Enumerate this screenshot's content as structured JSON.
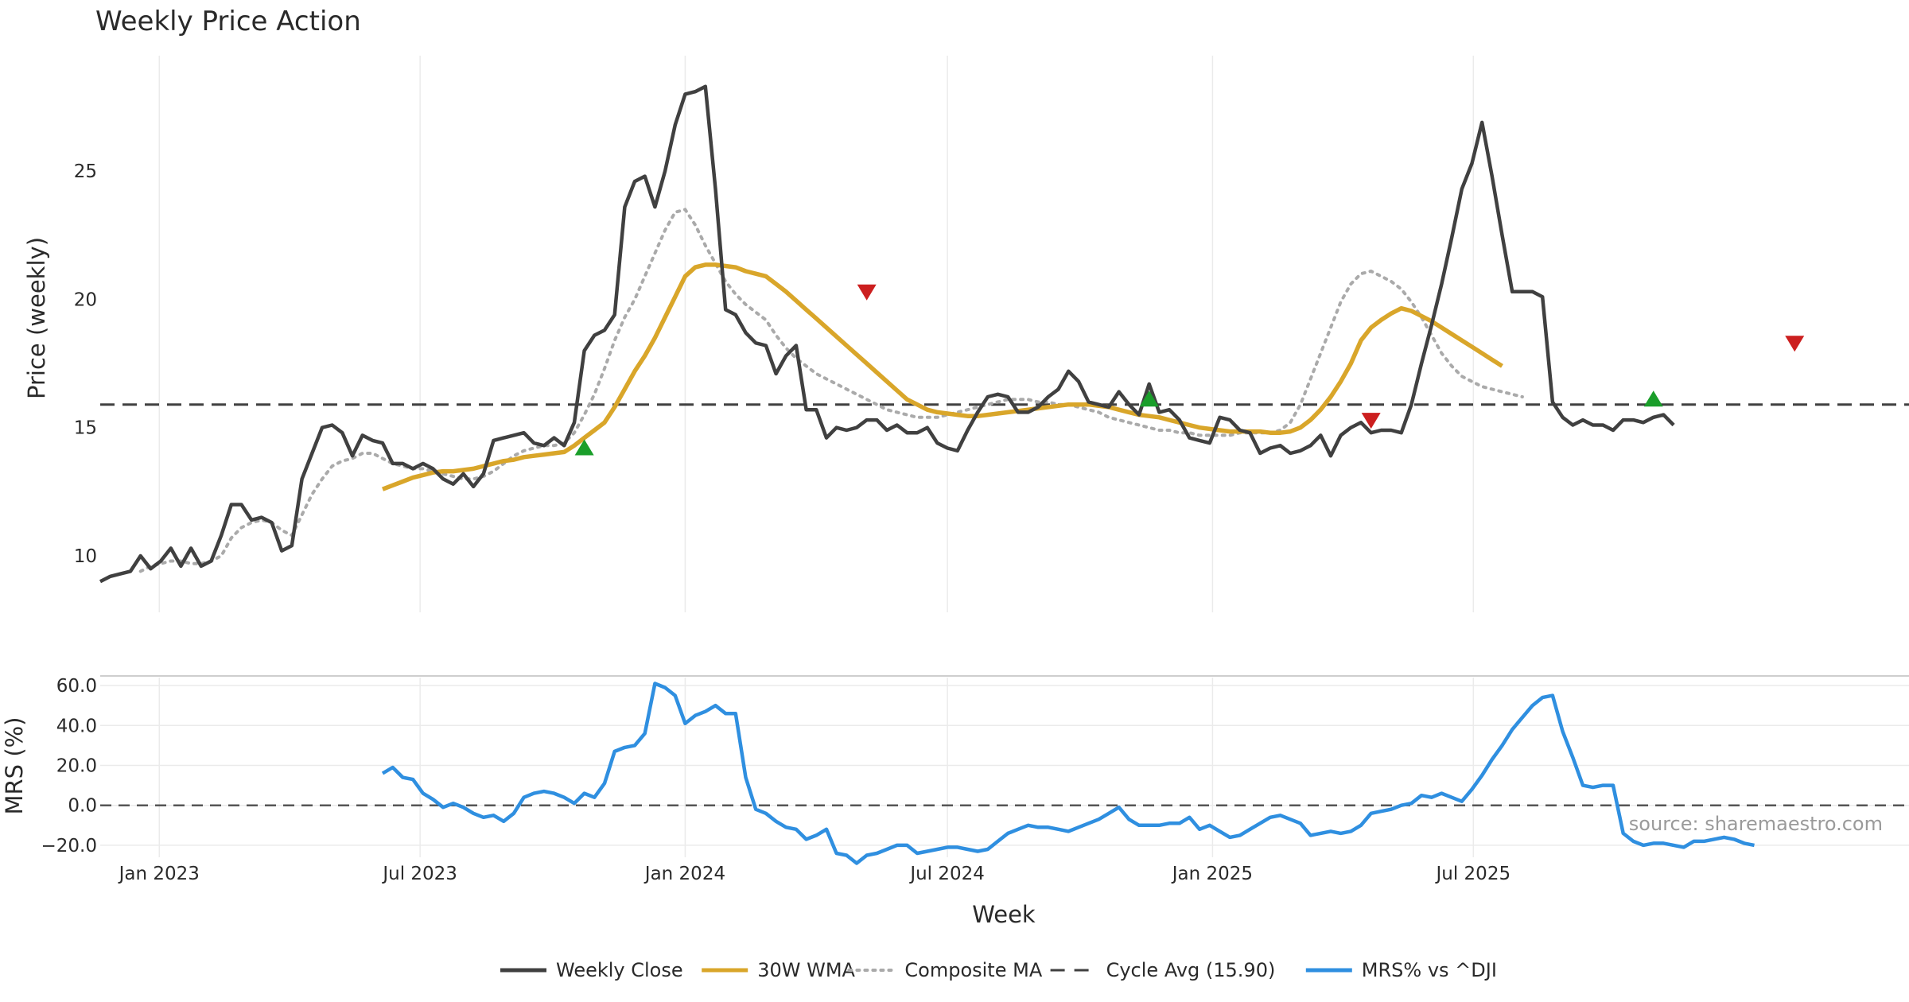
{
  "chart_data": [
    {
      "type": "line",
      "title": "Weekly Price Action",
      "xlabel": "Week",
      "ylabel": "Price (weekly)",
      "x_start": "2022-11-21",
      "x_step_weeks": 1,
      "x_ticks": [
        "Jan 2023",
        "Jul 2023",
        "Jan 2024",
        "Jul 2024",
        "Jan 2025",
        "Jul 2025"
      ],
      "y_ticks": [
        "10",
        "15",
        "20",
        "25"
      ],
      "ylim": [
        7.8,
        29.5
      ],
      "grid": "vertical",
      "series": [
        {
          "name": "Weekly Close",
          "color": "#404040",
          "values": [
            9.0,
            9.2,
            9.3,
            9.4,
            10.0,
            9.5,
            9.8,
            10.3,
            9.6,
            10.3,
            9.6,
            9.8,
            10.8,
            12.0,
            12.0,
            11.4,
            11.5,
            11.3,
            10.2,
            10.4,
            13.0,
            14.0,
            15.0,
            15.1,
            14.8,
            13.9,
            14.7,
            14.5,
            14.4,
            13.6,
            13.6,
            13.4,
            13.6,
            13.4,
            13.0,
            12.8,
            13.2,
            12.7,
            13.2,
            14.5,
            14.6,
            14.7,
            14.8,
            14.4,
            14.3,
            14.6,
            14.3,
            15.2,
            18.0,
            18.6,
            18.8,
            19.4,
            23.6,
            24.6,
            24.8,
            23.6,
            25.0,
            26.8,
            28.0,
            28.1,
            28.3,
            24.3,
            19.6,
            19.4,
            18.7,
            18.3,
            18.2,
            17.1,
            17.8,
            18.2,
            15.7,
            15.7,
            14.6,
            15.0,
            14.9,
            15.0,
            15.3,
            15.3,
            14.9,
            15.1,
            14.8,
            14.8,
            15.0,
            14.4,
            14.2,
            14.1,
            14.9,
            15.6,
            16.2,
            16.3,
            16.2,
            15.6,
            15.6,
            15.8,
            16.2,
            16.5,
            17.2,
            16.8,
            16.0,
            15.9,
            15.8,
            16.4,
            15.9,
            15.5,
            16.7,
            15.6,
            15.7,
            15.3,
            14.6,
            14.5,
            14.4,
            15.4,
            15.3,
            14.9,
            14.8,
            14.0,
            14.2,
            14.3,
            14.0,
            14.1,
            14.3,
            14.7,
            13.9,
            14.7,
            15.0,
            15.2,
            14.8,
            14.9,
            14.9,
            14.8,
            15.9,
            17.5,
            19.0,
            20.6,
            22.4,
            24.3,
            25.3,
            26.9,
            24.8,
            22.5,
            20.3,
            20.3,
            20.3,
            20.1,
            16.0,
            15.4,
            15.1,
            15.3,
            15.1,
            15.1,
            14.9,
            15.3,
            15.3,
            15.2,
            15.4,
            15.5,
            15.1
          ]
        },
        {
          "name": "30W WMA",
          "color": "#d9a62a",
          "values": [
            null,
            null,
            null,
            null,
            null,
            null,
            null,
            null,
            null,
            null,
            null,
            null,
            null,
            null,
            null,
            null,
            null,
            null,
            null,
            null,
            null,
            null,
            null,
            null,
            null,
            null,
            null,
            null,
            12.6,
            12.75,
            12.9,
            13.05,
            13.15,
            13.25,
            13.3,
            13.3,
            13.35,
            13.4,
            13.5,
            13.6,
            13.7,
            13.75,
            13.85,
            13.9,
            13.95,
            14.0,
            14.05,
            14.3,
            14.6,
            14.9,
            15.2,
            15.8,
            16.5,
            17.2,
            17.8,
            18.5,
            19.3,
            20.1,
            20.9,
            21.25,
            21.35,
            21.35,
            21.3,
            21.25,
            21.1,
            21.0,
            20.9,
            20.6,
            20.3,
            19.95,
            19.6,
            19.25,
            18.9,
            18.55,
            18.2,
            17.85,
            17.5,
            17.15,
            16.8,
            16.45,
            16.1,
            15.9,
            15.7,
            15.6,
            15.55,
            15.5,
            15.45,
            15.45,
            15.5,
            15.55,
            15.6,
            15.65,
            15.7,
            15.75,
            15.8,
            15.85,
            15.9,
            15.9,
            15.9,
            15.85,
            15.8,
            15.7,
            15.6,
            15.5,
            15.45,
            15.4,
            15.3,
            15.2,
            15.1,
            15.0,
            14.95,
            14.9,
            14.85,
            14.85,
            14.85,
            14.85,
            14.8,
            14.8,
            14.85,
            15.0,
            15.3,
            15.7,
            16.2,
            16.8,
            17.5,
            18.4,
            18.9,
            19.2,
            19.45,
            19.65,
            19.55,
            19.35,
            19.15,
            18.9,
            18.65,
            18.4,
            18.15,
            17.9,
            17.65,
            17.4
          ]
        },
        {
          "name": "Composite MA",
          "color": "#aaaaaa",
          "values": [
            null,
            null,
            null,
            null,
            9.4,
            9.6,
            9.7,
            9.8,
            9.8,
            9.7,
            9.7,
            9.8,
            10.0,
            10.7,
            11.1,
            11.3,
            11.4,
            11.3,
            11.0,
            10.8,
            11.6,
            12.4,
            13.0,
            13.5,
            13.7,
            13.8,
            14.0,
            14.0,
            13.8,
            13.6,
            13.5,
            13.4,
            13.4,
            13.3,
            13.2,
            13.1,
            13.0,
            13.0,
            13.1,
            13.3,
            13.6,
            13.9,
            14.1,
            14.2,
            14.3,
            14.3,
            14.4,
            14.8,
            15.5,
            16.3,
            17.3,
            18.4,
            19.3,
            20.0,
            20.9,
            21.8,
            22.7,
            23.4,
            23.5,
            22.9,
            22.1,
            21.4,
            20.7,
            20.2,
            19.8,
            19.5,
            19.2,
            18.6,
            18.1,
            17.7,
            17.4,
            17.1,
            16.9,
            16.7,
            16.5,
            16.3,
            16.1,
            15.9,
            15.7,
            15.6,
            15.5,
            15.4,
            15.4,
            15.4,
            15.5,
            15.6,
            15.7,
            15.8,
            15.9,
            16.0,
            16.1,
            16.1,
            16.1,
            16.0,
            16.0,
            15.9,
            15.9,
            15.8,
            15.7,
            15.6,
            15.4,
            15.3,
            15.2,
            15.1,
            15.0,
            14.9,
            14.9,
            14.8,
            14.8,
            14.7,
            14.7,
            14.7,
            14.7,
            14.8,
            14.8,
            14.8,
            14.8,
            14.9,
            15.2,
            15.9,
            16.9,
            17.9,
            18.9,
            19.9,
            20.6,
            21.0,
            21.1,
            20.9,
            20.7,
            20.4,
            19.9,
            19.3,
            18.6,
            17.9,
            17.4,
            17.0,
            16.8,
            16.6,
            16.5,
            16.4,
            16.3,
            16.2
          ]
        },
        {
          "name": "Cycle Avg (15.90)",
          "value": 15.9,
          "color": "#404040",
          "style": "dashed"
        }
      ],
      "signals": {
        "buy": [
          {
            "week": 48,
            "value": 14.2
          },
          {
            "week": 104,
            "value": 16.1
          },
          {
            "week": 154,
            "value": 16.1
          }
        ],
        "sell": [
          {
            "week": 76,
            "value": 20.3
          },
          {
            "week": 126,
            "value": 15.3
          },
          {
            "week": 168,
            "value": 18.3
          }
        ]
      }
    },
    {
      "type": "line",
      "xlabel": "Week",
      "ylabel": "MRS (%)",
      "y_ticks": [
        "60.0",
        "40.0",
        "20.0",
        "0.0",
        "−20.0"
      ],
      "ylim": [
        -26,
        64
      ],
      "zero_line": "dashed",
      "series": [
        {
          "name": "MRS% vs ^DJI",
          "color": "#2f8fe0",
          "values": [
            null,
            null,
            null,
            null,
            null,
            null,
            null,
            null,
            null,
            null,
            null,
            null,
            null,
            null,
            null,
            null,
            null,
            null,
            null,
            null,
            null,
            null,
            null,
            null,
            null,
            null,
            null,
            null,
            16,
            19,
            14,
            13,
            6,
            3,
            -1,
            1,
            -1,
            -4,
            -6,
            -5,
            -8,
            -4,
            4,
            6,
            7,
            6,
            4,
            1,
            6,
            4,
            11,
            27,
            29,
            30,
            36,
            61,
            59,
            55,
            41,
            45,
            47,
            50,
            46,
            46,
            14,
            -2,
            -4,
            -8,
            -11,
            -12,
            -17,
            -15,
            -12,
            -24,
            -25,
            -29,
            -25,
            -24,
            -22,
            -20,
            -20,
            -24,
            -23,
            -22,
            -21,
            -21,
            -22,
            -23,
            -22,
            -18,
            -14,
            -12,
            -10,
            -11,
            -11,
            -12,
            -13,
            -11,
            -9,
            -7,
            -4,
            -1,
            -7,
            -10,
            -10,
            -10,
            -9,
            -9,
            -6,
            -12,
            -10,
            -13,
            -16,
            -15,
            -12,
            -9,
            -6,
            -5,
            -7,
            -9,
            -15,
            -14,
            -13,
            -14,
            -13,
            -10,
            -4,
            -3,
            -2,
            0,
            1,
            5,
            4,
            6,
            4,
            2,
            8,
            15,
            23,
            30,
            38,
            44,
            50,
            54,
            55,
            37,
            24,
            10,
            9,
            10,
            10,
            -14,
            -18,
            -20,
            -19,
            -19,
            -20,
            -21,
            -18,
            -18,
            -17,
            -16,
            -17,
            -19,
            -20
          ]
        }
      ]
    }
  ],
  "source_note": "source: sharemaestro.com",
  "legend": [
    {
      "label": "Weekly Close",
      "style": "solid",
      "color": "#404040"
    },
    {
      "label": "30W WMA",
      "style": "solid",
      "color": "#d9a62a"
    },
    {
      "label": "Composite MA",
      "style": "dotted",
      "color": "#aaaaaa"
    },
    {
      "label": "Cycle Avg (15.90)",
      "style": "dashed",
      "color": "#404040"
    },
    {
      "label": "MRS% vs ^DJI",
      "style": "solid",
      "color": "#2f8fe0"
    }
  ]
}
